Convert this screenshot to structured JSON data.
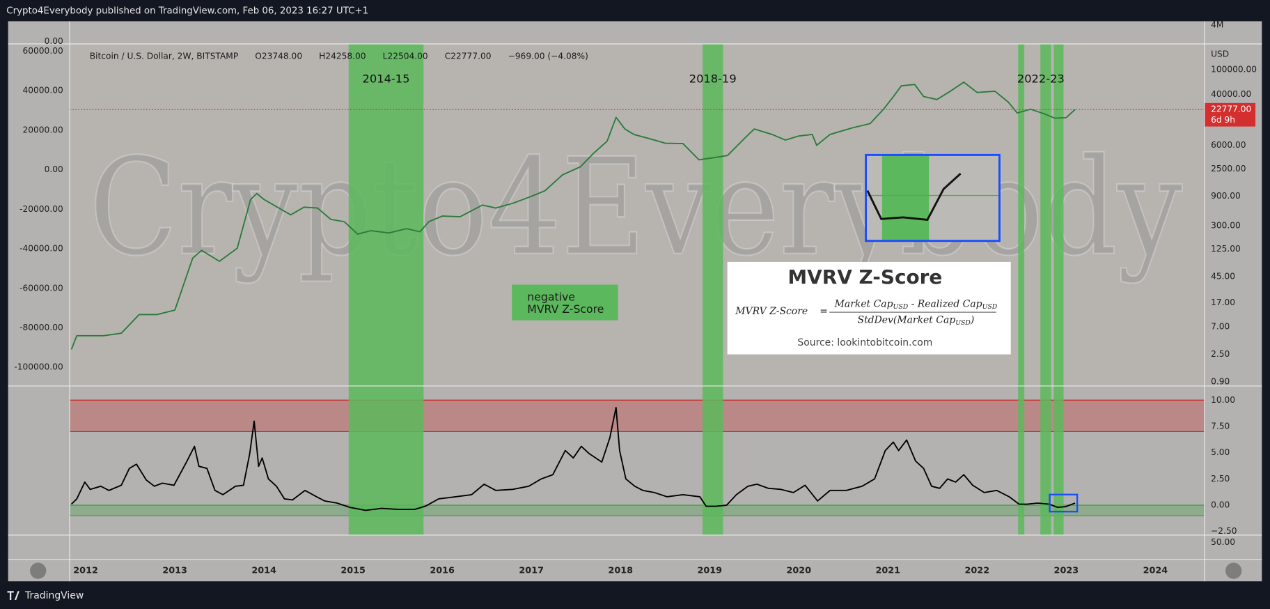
{
  "header": {
    "text": "Crypto4Everybody published on TradingView.com, Feb 06, 2023 16:27 UTC+1"
  },
  "chart_data": [
    {
      "type": "line",
      "title": "Bitcoin / U.S. Dollar, 2W, BITSTAMP",
      "ohlc": [
        {
          "label": "O",
          "value": "23748.00"
        },
        {
          "label": "H",
          "value": "24258.00"
        },
        {
          "label": "L",
          "value": "22504.00"
        },
        {
          "label": "C",
          "value": "22777.00"
        }
      ],
      "change": "−969.00 (−4.08%)",
      "x": [
        2011.84,
        2011.9,
        2012.0,
        2012.2,
        2012.4,
        2012.6,
        2012.8,
        2013.0,
        2013.2,
        2013.3,
        2013.5,
        2013.7,
        2013.85,
        2013.92,
        2014.0,
        2014.15,
        2014.3,
        2014.45,
        2014.6,
        2014.75,
        2014.9,
        2015.05,
        2015.2,
        2015.4,
        2015.6,
        2015.75,
        2015.85,
        2016.0,
        2016.2,
        2016.45,
        2016.6,
        2016.8,
        2017.0,
        2017.15,
        2017.35,
        2017.55,
        2017.7,
        2017.85,
        2017.95,
        2018.05,
        2018.15,
        2018.35,
        2018.5,
        2018.7,
        2018.88,
        2019.0,
        2019.2,
        2019.4,
        2019.5,
        2019.7,
        2019.85,
        2020.0,
        2020.15,
        2020.2,
        2020.35,
        2020.6,
        2020.8,
        2020.95,
        2021.05,
        2021.15,
        2021.3,
        2021.4,
        2021.55,
        2021.7,
        2021.85,
        2022.0,
        2022.2,
        2022.35,
        2022.45,
        2022.6,
        2022.75,
        2022.87,
        2023.0,
        2023.1
      ],
      "values": [
        3,
        5,
        5,
        5,
        5.5,
        11,
        11,
        13,
        90,
        120,
        80,
        130,
        800,
        1000,
        800,
        600,
        450,
        600,
        580,
        380,
        350,
        220,
        250,
        230,
        270,
        240,
        350,
        430,
        420,
        650,
        580,
        700,
        900,
        1100,
        2000,
        2700,
        4500,
        7000,
        17000,
        11000,
        9000,
        7500,
        6500,
        6400,
        3500,
        3700,
        4100,
        8000,
        11000,
        9000,
        7300,
        8500,
        9000,
        6000,
        9000,
        11500,
        13500,
        23000,
        35000,
        55000,
        58000,
        37000,
        33000,
        45000,
        63000,
        43000,
        45000,
        30000,
        20000,
        23000,
        19500,
        16500,
        16800,
        22777
      ],
      "color": "#2b7a3b",
      "log_scale": true,
      "ylim": [
        0.77,
        262000
      ],
      "yticks": [
        {
          "value": 100000,
          "label": "100000.00"
        },
        {
          "value": 40000,
          "label": "40000.00"
        },
        {
          "value": 6000,
          "label": "6000.00"
        },
        {
          "value": 2500,
          "label": "2500.00"
        },
        {
          "value": 900,
          "label": "900.00"
        },
        {
          "value": 300,
          "label": "300.00"
        },
        {
          "value": 125,
          "label": "125.00"
        },
        {
          "value": 45,
          "label": "45.00"
        },
        {
          "value": 17,
          "label": "17.00"
        },
        {
          "value": 7,
          "label": "7.00"
        },
        {
          "value": 2.5,
          "label": "2.50"
        },
        {
          "value": 0.9,
          "label": "0.90"
        }
      ],
      "y_unit": "USD",
      "last_price": {
        "value": 22777,
        "label": "22777.00",
        "countdown": "6d 9h",
        "color": "#d32f2f"
      },
      "y2lim": [
        -109400,
        63700
      ],
      "y2ticks": [
        {
          "value": 60000,
          "label": "60000.00"
        },
        {
          "value": 40000,
          "label": "40000.00"
        },
        {
          "value": 20000,
          "label": "20000.00"
        },
        {
          "value": 0,
          "label": "0.00"
        },
        {
          "value": -20000,
          "label": "-20000.00"
        },
        {
          "value": -40000,
          "label": "-40000.00"
        },
        {
          "value": -60000,
          "label": "-60000.00"
        },
        {
          "value": -80000,
          "label": "-80000.00"
        },
        {
          "value": -100000,
          "label": "-100000.00"
        }
      ],
      "xlim": [
        2011.82,
        2024.55
      ],
      "xticks": [
        2012,
        2013,
        2014,
        2015,
        2016,
        2017,
        2018,
        2019,
        2020,
        2021,
        2022,
        2023,
        2024
      ],
      "zone_color": "#5cb85c",
      "zones": [
        {
          "label": "2014-15",
          "ranges": [
            [
              2014.95,
              2015.79
            ]
          ]
        },
        {
          "label": "2018-19",
          "ranges": [
            [
              2018.92,
              2019.15
            ]
          ]
        },
        {
          "label": "2022-23",
          "ranges": [
            [
              2022.46,
              2022.53
            ],
            [
              2022.71,
              2022.83
            ],
            [
              2022.86,
              2022.97
            ]
          ]
        }
      ],
      "watermark": "Crypto4Everybody",
      "negative_box": [
        "negative",
        "MVRV Z-Score"
      ],
      "card": {
        "title": "MVRV Z-Score",
        "lhs": "MVRV Z-Score",
        "eq": "=",
        "numerator": [
          "Market Cap",
          "USD",
          " - Realized Cap",
          "USD"
        ],
        "denominator": [
          "StdDev(Market Cap",
          "USD",
          ")"
        ],
        "source": "Source: lookintobitcoin.com"
      }
    },
    {
      "type": "line",
      "x": [
        2011.84,
        2011.9,
        2011.99,
        2012.05,
        2012.17,
        2012.26,
        2012.4,
        2012.49,
        2012.57,
        2012.68,
        2012.77,
        2012.86,
        2012.99,
        2013.13,
        2013.22,
        2013.27,
        2013.36,
        2013.45,
        2013.54,
        2013.68,
        2013.77,
        2013.84,
        2013.89,
        2013.94,
        2013.98,
        2014.05,
        2014.14,
        2014.23,
        2014.32,
        2014.46,
        2014.59,
        2014.68,
        2014.82,
        2014.96,
        2015.14,
        2015.32,
        2015.51,
        2015.69,
        2015.81,
        2015.96,
        2016.15,
        2016.33,
        2016.47,
        2016.6,
        2016.79,
        2016.97,
        2017.11,
        2017.24,
        2017.38,
        2017.47,
        2017.56,
        2017.65,
        2017.79,
        2017.88,
        2017.95,
        2017.99,
        2018.06,
        2018.16,
        2018.25,
        2018.38,
        2018.52,
        2018.7,
        2018.89,
        2018.96,
        2019.07,
        2019.19,
        2019.3,
        2019.43,
        2019.53,
        2019.66,
        2019.8,
        2019.94,
        2020.07,
        2020.21,
        2020.35,
        2020.53,
        2020.71,
        2020.85,
        2020.97,
        2021.06,
        2021.12,
        2021.21,
        2021.31,
        2021.4,
        2021.49,
        2021.58,
        2021.67,
        2021.76,
        2021.85,
        2021.95,
        2022.08,
        2022.22,
        2022.36,
        2022.47,
        2022.56,
        2022.68,
        2022.81,
        2022.9,
        2022.99,
        2023.1
      ],
      "values": [
        0.1,
        0.6,
        2.2,
        1.5,
        1.8,
        1.4,
        1.9,
        3.5,
        3.9,
        2.4,
        1.8,
        2.1,
        1.9,
        4.1,
        5.6,
        3.7,
        3.5,
        1.4,
        1.0,
        1.8,
        1.9,
        4.9,
        8.0,
        3.7,
        4.5,
        2.5,
        1.8,
        0.6,
        0.5,
        1.4,
        0.8,
        0.4,
        0.2,
        -0.2,
        -0.5,
        -0.3,
        -0.4,
        -0.4,
        -0.1,
        0.6,
        0.8,
        1.0,
        2.0,
        1.4,
        1.5,
        1.8,
        2.5,
        2.9,
        5.2,
        4.5,
        5.6,
        4.9,
        4.1,
        6.4,
        9.3,
        5.2,
        2.5,
        1.8,
        1.4,
        1.2,
        0.8,
        1.0,
        0.8,
        -0.1,
        -0.1,
        0,
        1.0,
        1.8,
        2.0,
        1.6,
        1.5,
        1.2,
        1.9,
        0.4,
        1.4,
        1.4,
        1.8,
        2.5,
        5.2,
        6.0,
        5.2,
        6.2,
        4.2,
        3.5,
        1.8,
        1.6,
        2.5,
        2.2,
        2.9,
        1.9,
        1.2,
        1.4,
        0.8,
        0.1,
        0.1,
        0.2,
        0.1,
        -0.2,
        -0.15,
        0.2
      ],
      "color": "#000000",
      "ylim": [
        -2.85,
        11.35
      ],
      "yticks": [
        {
          "value": 10,
          "label": "10.00"
        },
        {
          "value": 7.5,
          "label": "7.50"
        },
        {
          "value": 5,
          "label": "5.00"
        },
        {
          "value": 2.5,
          "label": "2.50"
        },
        {
          "value": 0,
          "label": "0.00"
        },
        {
          "value": -2.5,
          "label": "−2.50"
        }
      ],
      "bands": [
        {
          "range": [
            7,
            10
          ],
          "color": "#c62828"
        },
        {
          "range": [
            -1,
            0
          ],
          "color": "#3a9d3a"
        }
      ]
    }
  ],
  "top_pane": {
    "left_label": "0.00",
    "right_label": "4M"
  },
  "bottom_pane": {
    "right_label": "50.00"
  },
  "footer": {
    "brand": "TradingView"
  }
}
